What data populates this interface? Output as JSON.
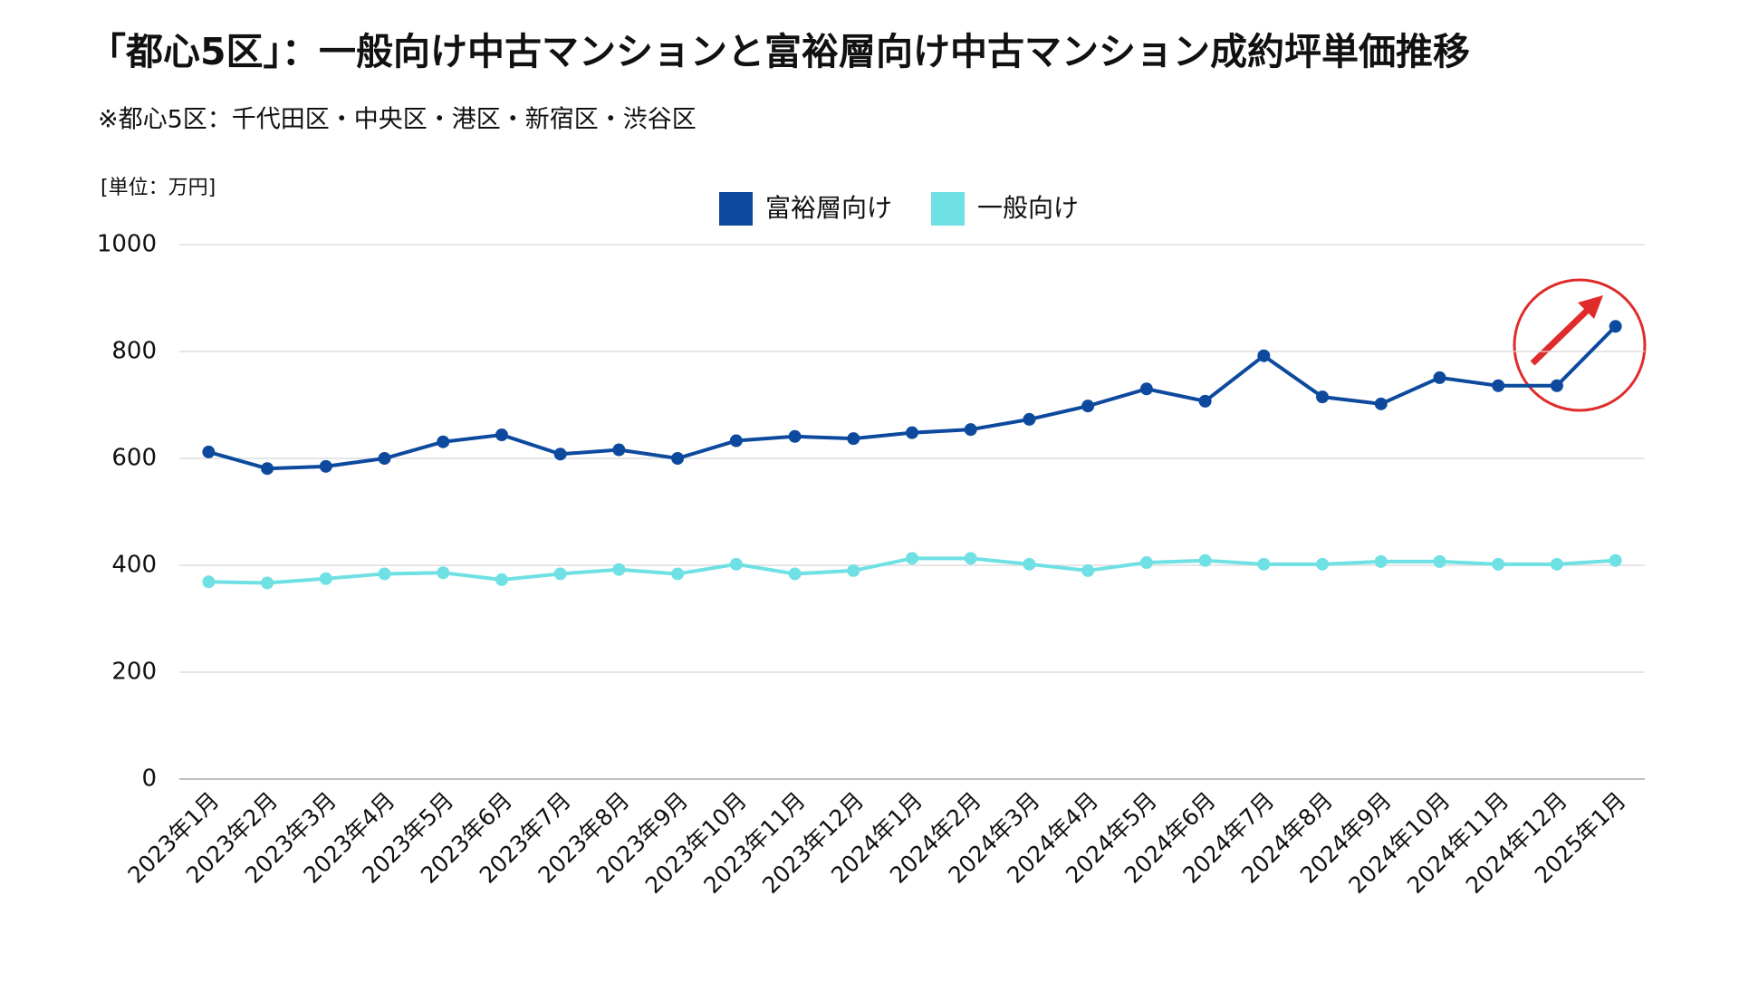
{
  "chart_data": {
    "type": "line",
    "title": "「都心5区」：一般向け中古マンションと富裕層向け中古マンション成約坪単価推移",
    "subtitle": "※都心5区：千代田区・中央区・港区・新宿区・渋谷区",
    "y_axis_label": "[単位：万円]",
    "categories": [
      "2023年1月",
      "2023年2月",
      "2023年3月",
      "2023年4月",
      "2023年5月",
      "2023年6月",
      "2023年7月",
      "2023年8月",
      "2023年9月",
      "2023年10月",
      "2023年11月",
      "2023年12月",
      "2024年1月",
      "2024年2月",
      "2024年3月",
      "2024年4月",
      "2024年5月",
      "2024年6月",
      "2024年7月",
      "2024年8月",
      "2024年9月",
      "2024年10月",
      "2024年11月",
      "2024年12月",
      "2025年1月"
    ],
    "series": [
      {
        "name": "富裕層向け",
        "color": "#0d4a9e",
        "values": [
          612,
          581,
          585,
          600,
          631,
          644,
          608,
          616,
          600,
          633,
          641,
          637,
          648,
          654,
          673,
          698,
          730,
          707,
          792,
          715,
          702,
          751,
          736,
          736,
          847
        ]
      },
      {
        "name": "一般向け",
        "color": "#6fe0e3",
        "values": [
          369,
          367,
          375,
          384,
          386,
          373,
          384,
          392,
          384,
          402,
          384,
          390,
          413,
          413,
          402,
          390,
          405,
          409,
          402,
          402,
          407,
          407,
          402,
          402,
          409
        ]
      }
    ],
    "ylim": [
      0,
      1000
    ],
    "yticks": [
      0,
      200,
      400,
      600,
      800,
      1000
    ],
    "grid": true,
    "legend": "top"
  }
}
